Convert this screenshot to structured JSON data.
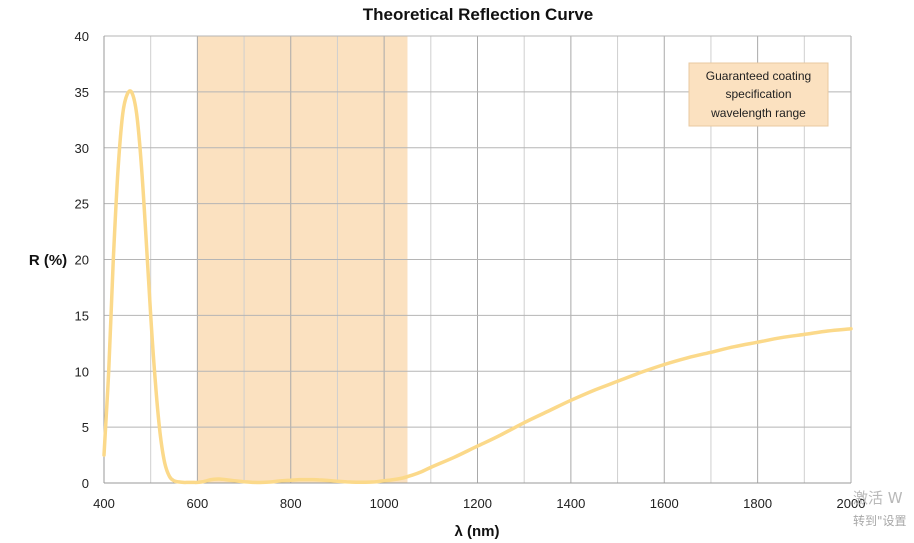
{
  "chart_data": {
    "type": "line",
    "title": "Theoretical Reflection Curve",
    "xlabel": "λ (nm)",
    "ylabel": "R (%)",
    "xlim": [
      400,
      2000
    ],
    "ylim": [
      0,
      40
    ],
    "x_ticks": [
      400,
      600,
      800,
      1000,
      1200,
      1400,
      1600,
      1800,
      2000
    ],
    "y_ticks": [
      0,
      5,
      10,
      15,
      20,
      25,
      30,
      35,
      40
    ],
    "x_minor_step": 100,
    "grid": true,
    "highlight_band": {
      "x_start": 600,
      "x_end": 1050,
      "color": "#fbe1c0"
    },
    "annotation": {
      "lines": [
        "Guaranteed coating",
        "specification",
        "wavelength range"
      ],
      "fill": "#fbe1c0",
      "border": "#e8c9a0"
    },
    "series": [
      {
        "color": "#fbd98a",
        "x": [
          400,
          410,
          420,
          430,
          440,
          450,
          460,
          470,
          480,
          490,
          500,
          510,
          520,
          530,
          540,
          550,
          560,
          570,
          580,
          590,
          600,
          610,
          620,
          630,
          640,
          650,
          660,
          680,
          700,
          720,
          740,
          760,
          780,
          800,
          820,
          840,
          860,
          880,
          900,
          920,
          940,
          960,
          980,
          1000,
          1020,
          1040,
          1060,
          1080,
          1100,
          1150,
          1200,
          1250,
          1300,
          1350,
          1400,
          1450,
          1500,
          1550,
          1600,
          1650,
          1700,
          1750,
          1800,
          1850,
          1900,
          1950,
          2000
        ],
        "y": [
          2.5,
          10,
          20,
          28,
          33,
          34.8,
          34.9,
          33,
          28.5,
          22,
          15,
          9,
          4.5,
          1.8,
          0.6,
          0.2,
          0.1,
          0.05,
          0.05,
          0.05,
          0.05,
          0.1,
          0.2,
          0.3,
          0.35,
          0.35,
          0.3,
          0.2,
          0.12,
          0.05,
          0.05,
          0.1,
          0.2,
          0.25,
          0.3,
          0.3,
          0.28,
          0.22,
          0.15,
          0.1,
          0.07,
          0.07,
          0.1,
          0.2,
          0.3,
          0.45,
          0.7,
          1.0,
          1.4,
          2.3,
          3.3,
          4.3,
          5.4,
          6.4,
          7.4,
          8.3,
          9.1,
          9.9,
          10.6,
          11.2,
          11.7,
          12.2,
          12.6,
          13.0,
          13.3,
          13.6,
          13.8
        ]
      }
    ]
  },
  "watermark": {
    "line1": "激活 W",
    "line2": "转到\"设置"
  }
}
